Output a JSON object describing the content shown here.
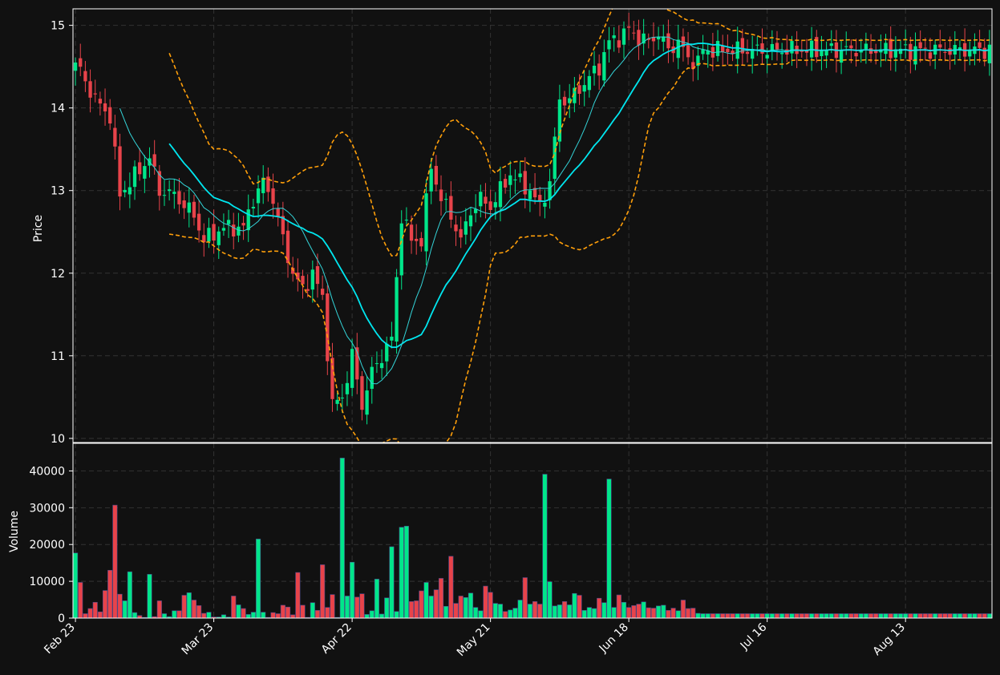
{
  "chart_data": {
    "type": "candlestick",
    "theme": {
      "background": "#111111",
      "up_color": "#00e68a",
      "down_color": "#e8434a",
      "grid_color": "#333333",
      "frame_color": "#ffffff",
      "ma_fast_color": "#34d4d8",
      "ma_slow_color": "#00e6ef",
      "band_color": "#ff9f0a"
    },
    "dates": [
      "Feb 23",
      "Feb 24",
      "Feb 25",
      "Feb 26",
      "Feb 27",
      "Feb 28",
      "Feb 29",
      "Mar 1",
      "Mar 2",
      "Mar 3",
      "Mar 4",
      "Mar 5",
      "Mar 6",
      "Mar 7",
      "Mar 8",
      "Mar 9",
      "Mar 10",
      "Mar 11",
      "Mar 12",
      "Mar 13",
      "Mar 14",
      "Mar 15",
      "Mar 16",
      "Mar 17",
      "Mar 18",
      "Mar 19",
      "Mar 20",
      "Mar 21",
      "Mar 22",
      "Mar 23",
      "Mar 24",
      "Mar 25",
      "Mar 26",
      "Mar 27",
      "Mar 28",
      "Mar 29",
      "Mar 30",
      "Mar 31",
      "Apr 1",
      "Apr 2",
      "Apr 3",
      "Apr 4",
      "Apr 5",
      "Apr 6",
      "Apr 7",
      "Apr 8",
      "Apr 9",
      "Apr 10",
      "Apr 11",
      "Apr 12",
      "Apr 13",
      "Apr 14",
      "Apr 15",
      "Apr 16",
      "Apr 17",
      "Apr 18",
      "Apr 19",
      "Apr 20",
      "Apr 21",
      "Apr 22",
      "Apr 23",
      "Apr 24",
      "Apr 25",
      "Apr 26",
      "Apr 27",
      "Apr 28",
      "Apr 29",
      "Apr 30",
      "May 1",
      "May 2",
      "May 3",
      "May 4",
      "May 5",
      "May 6",
      "May 7",
      "May 8",
      "May 9",
      "May 10",
      "May 11",
      "May 12",
      "May 13",
      "May 14",
      "May 15",
      "May 16",
      "May 17",
      "May 18",
      "May 19",
      "May 20",
      "May 21",
      "May 22",
      "May 23",
      "May 24",
      "May 25",
      "May 26",
      "May 27",
      "May 28",
      "May 29",
      "May 30",
      "May 31",
      "Jun 1",
      "Jun 2",
      "Jun 3",
      "Jun 4",
      "Jun 5",
      "Jun 6",
      "Jun 7",
      "Jun 8",
      "Jun 9",
      "Jun 10",
      "Jun 11",
      "Jun 12",
      "Jun 13",
      "Jun 14",
      "Jun 15",
      "Jun 16",
      "Jun 17",
      "Jun 18",
      "Jun 19",
      "Jun 20",
      "Jun 21",
      "Jun 22",
      "Jun 23",
      "Jun 24",
      "Jun 25",
      "Jun 26",
      "Jun 27",
      "Jun 28",
      "Jun 29",
      "Jun 30",
      "Jul 1",
      "Jul 2",
      "Jul 3",
      "Jul 4",
      "Jul 5",
      "Jul 6",
      "Jul 7",
      "Jul 8",
      "Jul 9",
      "Jul 10",
      "Jul 11",
      "Jul 12",
      "Jul 13",
      "Jul 14",
      "Jul 15",
      "Jul 16",
      "Jul 17",
      "Jul 18",
      "Jul 19",
      "Jul 20",
      "Jul 21",
      "Jul 22",
      "Jul 23",
      "Jul 24",
      "Jul 25",
      "Jul 26",
      "Jul 27",
      "Jul 28",
      "Jul 29",
      "Jul 30",
      "Jul 31",
      "Aug 1",
      "Aug 2",
      "Aug 3",
      "Aug 4",
      "Aug 5",
      "Aug 6",
      "Aug 7",
      "Aug 8",
      "Aug 9",
      "Aug 10",
      "Aug 11",
      "Aug 12",
      "Aug 13",
      "Aug 14",
      "Aug 15",
      "Aug 16",
      "Aug 17",
      "Aug 18",
      "Aug 19",
      "Aug 20",
      "Aug 21",
      "Aug 22",
      "Aug 23",
      "Aug 24",
      "Aug 25",
      "Aug 26"
    ],
    "close_key_points": [
      [
        0,
        14.55
      ],
      [
        4,
        14.1
      ],
      [
        7,
        13.9
      ],
      [
        9,
        12.95
      ],
      [
        13,
        13.25
      ],
      [
        15,
        13.4
      ],
      [
        17,
        13.0
      ],
      [
        20,
        12.95
      ],
      [
        24,
        12.7
      ],
      [
        26,
        12.4
      ],
      [
        30,
        12.55
      ],
      [
        34,
        12.55
      ],
      [
        36,
        12.9
      ],
      [
        38,
        13.1
      ],
      [
        40,
        12.9
      ],
      [
        42,
        12.4
      ],
      [
        44,
        12.0
      ],
      [
        46,
        11.8
      ],
      [
        48,
        12.0
      ],
      [
        50,
        11.7
      ],
      [
        52,
        10.4
      ],
      [
        54,
        10.5
      ],
      [
        56,
        11.0
      ],
      [
        58,
        10.4
      ],
      [
        60,
        10.8
      ],
      [
        62,
        11.0
      ],
      [
        64,
        11.2
      ],
      [
        66,
        12.7
      ],
      [
        68,
        12.4
      ],
      [
        70,
        12.4
      ],
      [
        72,
        13.3
      ],
      [
        74,
        12.9
      ],
      [
        76,
        12.7
      ],
      [
        78,
        12.4
      ],
      [
        80,
        12.75
      ],
      [
        82,
        12.9
      ],
      [
        84,
        12.8
      ],
      [
        86,
        13.0
      ],
      [
        88,
        13.2
      ],
      [
        90,
        13.1
      ],
      [
        92,
        13.0
      ],
      [
        94,
        12.8
      ],
      [
        96,
        13.1
      ],
      [
        98,
        14.1
      ],
      [
        100,
        14.1
      ],
      [
        103,
        14.3
      ],
      [
        106,
        14.5
      ],
      [
        108,
        14.8
      ],
      [
        110,
        14.85
      ],
      [
        112,
        14.95
      ],
      [
        114,
        14.85
      ],
      [
        116,
        14.8
      ],
      [
        118,
        14.9
      ],
      [
        120,
        14.7
      ],
      [
        122,
        14.8
      ],
      [
        124,
        14.6
      ],
      [
        126,
        14.55
      ],
      [
        127,
        14.7
      ]
    ],
    "volume_key_points": [
      [
        0,
        17700
      ],
      [
        1,
        9700
      ],
      [
        2,
        1200
      ],
      [
        3,
        2600
      ],
      [
        4,
        4300
      ],
      [
        5,
        1700
      ],
      [
        6,
        7500
      ],
      [
        7,
        13000
      ],
      [
        8,
        30700
      ],
      [
        9,
        6500
      ],
      [
        10,
        4700
      ],
      [
        11,
        12600
      ],
      [
        12,
        1500
      ],
      [
        13,
        700
      ],
      [
        14,
        200
      ],
      [
        15,
        11900
      ],
      [
        16,
        400
      ],
      [
        17,
        4700
      ],
      [
        18,
        1200
      ],
      [
        19,
        400
      ],
      [
        20,
        2000
      ],
      [
        21,
        2000
      ],
      [
        22,
        6200
      ],
      [
        23,
        6900
      ],
      [
        24,
        4900
      ],
      [
        25,
        3400
      ],
      [
        26,
        1300
      ],
      [
        27,
        1600
      ],
      [
        28,
        300
      ],
      [
        29,
        300
      ],
      [
        30,
        900
      ],
      [
        31,
        300
      ],
      [
        32,
        6000
      ],
      [
        33,
        3600
      ],
      [
        34,
        2600
      ],
      [
        35,
        1000
      ],
      [
        36,
        1600
      ],
      [
        37,
        21500
      ],
      [
        38,
        1600
      ],
      [
        39,
        200
      ],
      [
        40,
        1500
      ],
      [
        41,
        1200
      ],
      [
        42,
        3500
      ],
      [
        43,
        3000
      ],
      [
        44,
        900
      ],
      [
        45,
        12400
      ],
      [
        46,
        3500
      ],
      [
        47,
        200
      ],
      [
        48,
        4200
      ],
      [
        49,
        2100
      ],
      [
        50,
        14500
      ],
      [
        51,
        2900
      ],
      [
        52,
        6400
      ],
      [
        53,
        200
      ],
      [
        54,
        43500
      ],
      [
        55,
        6000
      ],
      [
        56,
        15200
      ],
      [
        57,
        5700
      ],
      [
        58,
        6600
      ],
      [
        59,
        1000
      ],
      [
        60,
        2000
      ],
      [
        61,
        10600
      ],
      [
        62,
        1100
      ],
      [
        63,
        5500
      ],
      [
        64,
        19400
      ],
      [
        65,
        1800
      ],
      [
        66,
        24700
      ],
      [
        67,
        25000
      ],
      [
        68,
        4500
      ],
      [
        69,
        4700
      ],
      [
        70,
        7400
      ],
      [
        71,
        9700
      ],
      [
        72,
        6000
      ],
      [
        73,
        7700
      ],
      [
        74,
        10800
      ],
      [
        75,
        3200
      ],
      [
        76,
        16800
      ],
      [
        77,
        4000
      ],
      [
        78,
        6000
      ],
      [
        79,
        5600
      ],
      [
        80,
        6800
      ],
      [
        81,
        2900
      ],
      [
        82,
        2000
      ],
      [
        83,
        8700
      ],
      [
        84,
        7000
      ],
      [
        85,
        4000
      ],
      [
        86,
        3800
      ],
      [
        87,
        1800
      ],
      [
        88,
        2200
      ],
      [
        89,
        2700
      ],
      [
        90,
        4900
      ],
      [
        91,
        11000
      ],
      [
        92,
        3800
      ],
      [
        93,
        4500
      ],
      [
        94,
        3800
      ],
      [
        95,
        39100
      ],
      [
        96,
        9900
      ],
      [
        97,
        3300
      ],
      [
        98,
        3600
      ],
      [
        99,
        4500
      ],
      [
        100,
        3600
      ],
      [
        101,
        6700
      ],
      [
        102,
        6200
      ],
      [
        103,
        2100
      ],
      [
        104,
        2900
      ],
      [
        105,
        2600
      ],
      [
        106,
        5400
      ],
      [
        107,
        4200
      ],
      [
        108,
        37800
      ],
      [
        109,
        2900
      ],
      [
        110,
        6300
      ],
      [
        111,
        4300
      ],
      [
        112,
        2900
      ],
      [
        113,
        3400
      ],
      [
        114,
        3800
      ],
      [
        115,
        4400
      ],
      [
        116,
        2800
      ],
      [
        117,
        2700
      ],
      [
        118,
        3300
      ],
      [
        119,
        3500
      ],
      [
        120,
        2100
      ],
      [
        121,
        2700
      ],
      [
        122,
        2000
      ],
      [
        123,
        4900
      ],
      [
        124,
        2600
      ],
      [
        125,
        2700
      ],
      [
        126,
        1300
      ],
      [
        127,
        1200
      ]
    ],
    "ylim_price": [
      9.95,
      15.2
    ],
    "ylim_volume": [
      0,
      47500
    ],
    "price_ticks": [
      10,
      11,
      12,
      13,
      14,
      15
    ],
    "volume_ticks": [
      0,
      10000,
      20000,
      30000,
      40000
    ],
    "volume_tick_labels": [
      "0",
      "10000",
      "20000",
      "30000",
      "40000"
    ],
    "x_tick_labels": [
      "Feb 23",
      "Mar 23",
      "Apr 22",
      "May 21",
      "Jun 18",
      "Jul 16",
      "Aug 13"
    ],
    "ylabel_price": "Price",
    "ylabel_volume": "Volume",
    "grid": true,
    "overlays": [
      "fast moving average",
      "slow moving average",
      "upper band",
      "lower band"
    ]
  }
}
